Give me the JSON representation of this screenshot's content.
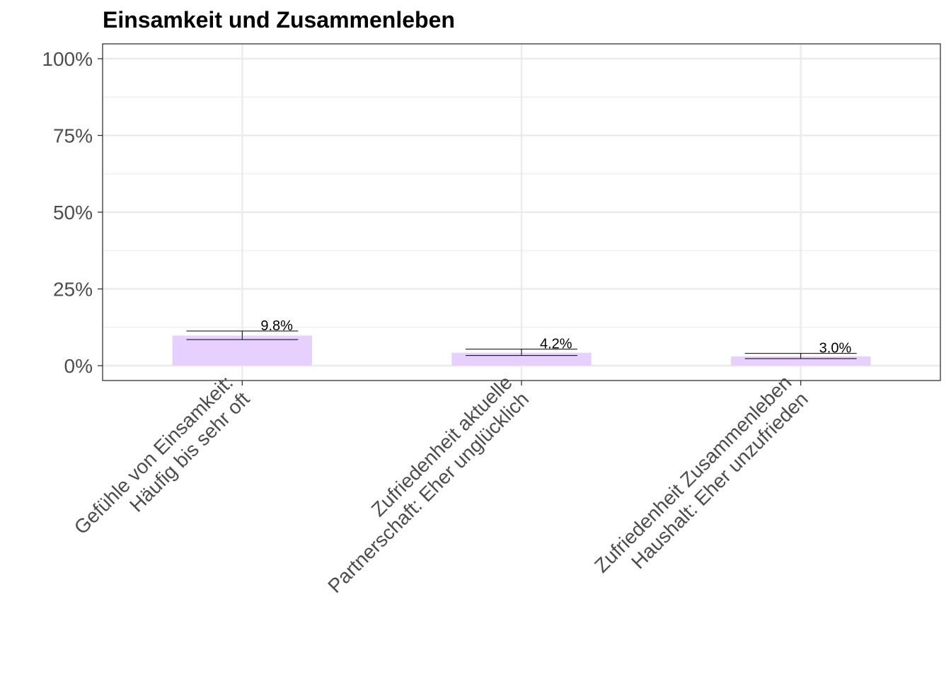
{
  "chart_data": {
    "type": "bar",
    "title": "Einsamkeit und Zusammenleben",
    "xlabel": "",
    "ylabel": "",
    "ylim": [
      0,
      100
    ],
    "yticks": [
      0,
      25,
      50,
      75,
      100
    ],
    "ytick_labels": [
      "0%",
      "25%",
      "50%",
      "75%",
      "100%"
    ],
    "categories": [
      [
        "Gefühle von Einsamkeit:",
        "Häufig bis sehr oft"
      ],
      [
        "Zufriedenheit aktuelle",
        "Partnerschaft: Eher unglücklich"
      ],
      [
        "Zufriedenheit Zusammenleben",
        "Haushalt: Eher unzufrieden"
      ]
    ],
    "values": [
      9.8,
      4.2,
      3.0
    ],
    "error_low": [
      8.5,
      3.3,
      2.3
    ],
    "error_high": [
      11.3,
      5.4,
      4.0
    ],
    "data_labels": [
      "9.8%",
      "4.2%",
      "3.0%"
    ],
    "bar_color": "#e6d0fd",
    "grid": true,
    "legend": "none"
  }
}
